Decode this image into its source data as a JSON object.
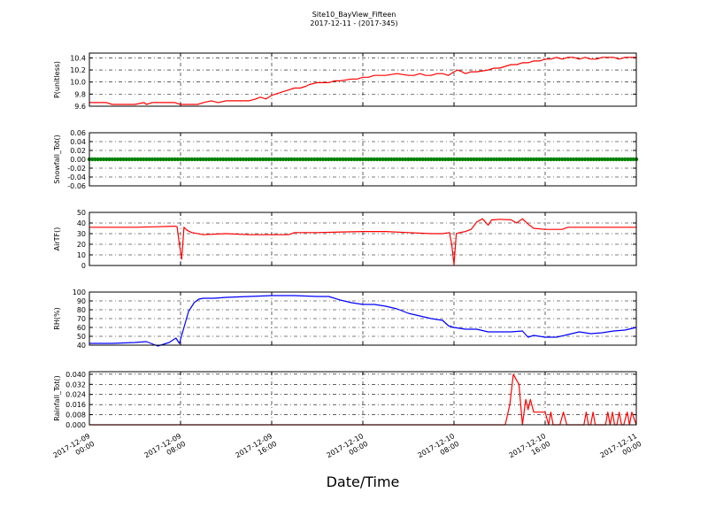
{
  "title_line1": "Site10_BayView_Fifteen",
  "title_line2": "2017-12-11 - (2017-345)",
  "x_axis_label": "Date/Time",
  "x_ticks": [
    {
      "t": 0,
      "l1": "2017-12-09",
      "l2": "00:00"
    },
    {
      "t": 8,
      "l1": "2017-12-09",
      "l2": "08:00"
    },
    {
      "t": 16,
      "l1": "2017-12-09",
      "l2": "16:00"
    },
    {
      "t": 24,
      "l1": "2017-12-10",
      "l2": "00:00"
    },
    {
      "t": 32,
      "l1": "2017-12-10",
      "l2": "08:00"
    },
    {
      "t": 40,
      "l1": "2017-12-10",
      "l2": "16:00"
    },
    {
      "t": 48,
      "l1": "2017-12-11",
      "l2": "00:00"
    }
  ],
  "chart_data": [
    {
      "type": "line",
      "ylabel": "P(unitless)",
      "ylim": [
        9.6,
        10.48
      ],
      "yticks": [
        "9.6",
        "9.8",
        "10.0",
        "10.2",
        "10.4"
      ],
      "color": "#ff0000",
      "grid": true,
      "xlim_hours": [
        0,
        48
      ],
      "x_hours": [
        0,
        1.5,
        2,
        4,
        4.8,
        5,
        5.5,
        6,
        7.5,
        8,
        9.5,
        10,
        10.7,
        11.3,
        12,
        13,
        14,
        14.6,
        15,
        15.5,
        16,
        16.5,
        17,
        17.5,
        18,
        18.5,
        19,
        19.3,
        20,
        21,
        21.5,
        22,
        23,
        23.5,
        24,
        24.5,
        25,
        26,
        27,
        28,
        28.5,
        29,
        29.5,
        30,
        30.5,
        31,
        31.5,
        32,
        32.3,
        32.7,
        33,
        33.5,
        34,
        35,
        35.5,
        36,
        36.5,
        37,
        37.5,
        38,
        38.5,
        39,
        39.5,
        40,
        40.5,
        41,
        41.5,
        42,
        42.5,
        43,
        43.5,
        44,
        44.5,
        45,
        45.5,
        46,
        46.5,
        47,
        47.5,
        48
      ],
      "y": [
        9.66,
        9.66,
        9.63,
        9.63,
        9.66,
        9.63,
        9.66,
        9.66,
        9.66,
        9.63,
        9.63,
        9.66,
        9.69,
        9.66,
        9.69,
        9.69,
        9.69,
        9.72,
        9.75,
        9.72,
        9.78,
        9.81,
        9.84,
        9.87,
        9.9,
        9.9,
        9.93,
        9.96,
        9.99,
        9.99,
        10.02,
        10.02,
        10.05,
        10.05,
        10.08,
        10.08,
        10.11,
        10.11,
        10.14,
        10.11,
        10.11,
        10.14,
        10.11,
        10.11,
        10.14,
        10.14,
        10.11,
        10.17,
        10.2,
        10.17,
        10.14,
        10.17,
        10.17,
        10.2,
        10.23,
        10.23,
        10.26,
        10.29,
        10.29,
        10.32,
        10.32,
        10.35,
        10.35,
        10.38,
        10.38,
        10.41,
        10.38,
        10.41,
        10.41,
        10.38,
        10.41,
        10.38,
        10.38,
        10.41,
        10.41,
        10.41,
        10.38,
        10.41,
        10.41,
        10.41
      ]
    },
    {
      "type": "line",
      "ylabel": "Snowfall_Tot()",
      "ylim": [
        -0.06,
        0.06
      ],
      "yticks": [
        "-0.06",
        "-0.04",
        "-0.02",
        "0.00",
        "0.02",
        "0.04",
        "0.06"
      ],
      "color": "#008000",
      "grid": true,
      "markers": true,
      "xlim_hours": [
        0,
        48
      ],
      "constant_value": 0.0
    },
    {
      "type": "line",
      "ylabel": "AirTF()",
      "ylim": [
        0,
        50
      ],
      "yticks": [
        "0",
        "10",
        "20",
        "30",
        "40",
        "50"
      ],
      "color": "#ff0000",
      "grid": true,
      "xlim_hours": [
        0,
        48
      ],
      "x_hours": [
        0,
        2,
        4,
        6,
        7.5,
        7.7,
        7.9,
        8.1,
        8.3,
        8.6,
        9,
        10,
        12,
        14,
        16,
        17.5,
        18,
        20,
        24,
        26,
        28,
        30,
        31,
        31.6,
        31.8,
        32.0,
        32.2,
        32.5,
        33,
        33.5,
        34,
        34.5,
        35,
        35.3,
        35.5,
        36,
        37,
        37.5,
        38,
        38.5,
        39,
        40,
        41,
        41.5,
        42,
        44,
        46,
        48
      ],
      "y": [
        36,
        36,
        36,
        36.5,
        37,
        36.5,
        20,
        6,
        36,
        33,
        31,
        29,
        30,
        29,
        29,
        29,
        31,
        31,
        32,
        32,
        31,
        30,
        30,
        31,
        20,
        1,
        30,
        31,
        32,
        34,
        41,
        44,
        38,
        43,
        43,
        43.5,
        43,
        40,
        44,
        39,
        35,
        34,
        34,
        34,
        36,
        36,
        36,
        36
      ]
    },
    {
      "type": "line",
      "ylabel": "RH(%)",
      "ylim": [
        40,
        100
      ],
      "yticks": [
        "40",
        "50",
        "60",
        "70",
        "80",
        "90",
        "100"
      ],
      "color": "#0000ff",
      "grid": true,
      "xlim_hours": [
        0,
        48
      ],
      "x_hours": [
        0,
        2,
        4,
        5,
        6,
        7,
        7.6,
        7.9,
        8.3,
        8.7,
        9.2,
        9.6,
        10,
        11,
        12,
        14,
        16,
        18,
        20,
        21,
        22,
        23,
        24,
        25,
        26,
        27,
        28,
        29,
        30,
        31,
        31.5,
        32,
        33,
        34,
        35,
        36,
        37,
        38,
        38.5,
        39,
        40,
        41,
        42,
        43,
        44,
        45,
        46,
        47,
        48
      ],
      "y": [
        42,
        42,
        43,
        44,
        39,
        43,
        48,
        42,
        60,
        78,
        88,
        92,
        93,
        93,
        94,
        95,
        96,
        96,
        95,
        95,
        91,
        88,
        86,
        86,
        84,
        81,
        76,
        73,
        70,
        68,
        62,
        60,
        58,
        58,
        55,
        55,
        55,
        56,
        49,
        51,
        49,
        49,
        52,
        55,
        53,
        54,
        56,
        57,
        60
      ]
    },
    {
      "type": "line",
      "ylabel": "Rainfall_Tot()",
      "ylim": [
        0.0,
        0.042
      ],
      "yticks": [
        "0.000",
        "0.008",
        "0.016",
        "0.024",
        "0.032",
        "0.040"
      ],
      "color": "#ff0000",
      "grid": true,
      "xlim_hours": [
        0,
        48
      ],
      "x_hours": [
        0,
        36,
        36.5,
        36.9,
        37.2,
        37.7,
        38.0,
        38.3,
        38.5,
        38.7,
        39.0,
        39.3,
        40.0,
        40.3,
        40.5,
        40.7,
        40.9,
        41.3,
        41.6,
        41.9,
        42.2,
        43.4,
        43.6,
        43.8,
        44.0,
        44.2,
        44.4,
        44.6,
        45.3,
        45.5,
        45.7,
        45.9,
        46.1,
        46.3,
        46.5,
        46.7,
        46.9,
        47.2,
        47.4,
        47.6,
        48
      ],
      "y": [
        0,
        0,
        0,
        0.016,
        0.04,
        0.032,
        0,
        0.02,
        0.012,
        0.02,
        0.01,
        0.01,
        0.01,
        0.0,
        0.01,
        0.0,
        0,
        0,
        0.01,
        0.0,
        0,
        0,
        0.01,
        0.0,
        0,
        0.01,
        0.0,
        0,
        0,
        0.01,
        0.0,
        0.01,
        0.0,
        0,
        0.01,
        0.0,
        0,
        0.01,
        0.0,
        0.01,
        0
      ]
    }
  ]
}
